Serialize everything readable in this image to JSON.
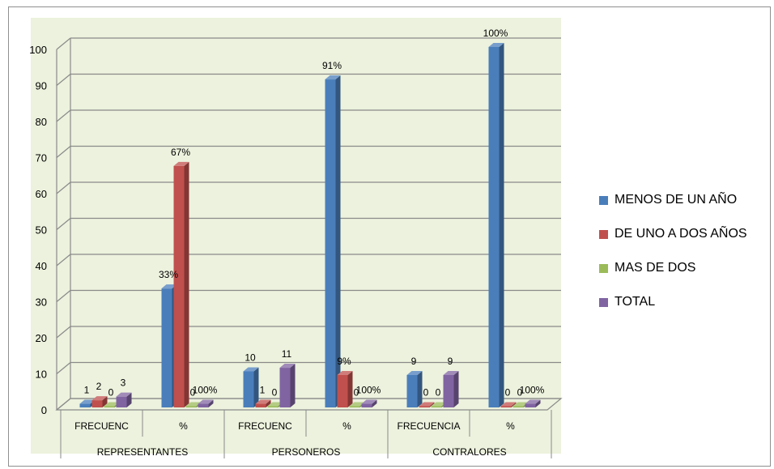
{
  "chart_data": {
    "type": "bar",
    "ylim": [
      0,
      100
    ],
    "yticks": [
      0,
      10,
      20,
      30,
      40,
      50,
      60,
      70,
      80,
      90,
      100
    ],
    "groups": [
      "REPRESENTANTES",
      "PERSONEROS",
      "CONTRALORES"
    ],
    "categories": [
      {
        "label": "FRECUENC",
        "group": "REPRESENTANTES"
      },
      {
        "label": "%",
        "group": "REPRESENTANTES"
      },
      {
        "label": "FRECUENC",
        "group": "PERSONEROS"
      },
      {
        "label": "%",
        "group": "PERSONEROS"
      },
      {
        "label": "FRECUENCIA",
        "group": "CONTRALORES"
      },
      {
        "label": "%",
        "group": "CONTRALORES"
      }
    ],
    "series": [
      {
        "name": "MENOS DE UN AÑO",
        "color": "#4a7ebb",
        "values": [
          1,
          33,
          10,
          91,
          9,
          100
        ],
        "labels": [
          "1",
          "33%",
          "10",
          "91%",
          "9",
          "100%"
        ]
      },
      {
        "name": "DE UNO A DOS AÑOS",
        "color": "#c0504d",
        "values": [
          2,
          67,
          1,
          9,
          0,
          0
        ],
        "labels": [
          "2",
          "67%",
          "1",
          "9%",
          "0",
          "0"
        ]
      },
      {
        "name": "MAS DE DOS",
        "color": "#9bbb59",
        "values": [
          0,
          0,
          0,
          0,
          0,
          0
        ],
        "labels": [
          "0",
          "0",
          "0",
          "0",
          "0",
          "0"
        ]
      },
      {
        "name": "TOTAL",
        "color": "#8064a2",
        "values": [
          3,
          1,
          11,
          1,
          9,
          1
        ],
        "labels": [
          "3",
          "100%",
          "11",
          "100%",
          "9",
          "100%"
        ]
      }
    ],
    "plot_background": "#ecf2dd",
    "grid": true,
    "legend_position": "right"
  }
}
